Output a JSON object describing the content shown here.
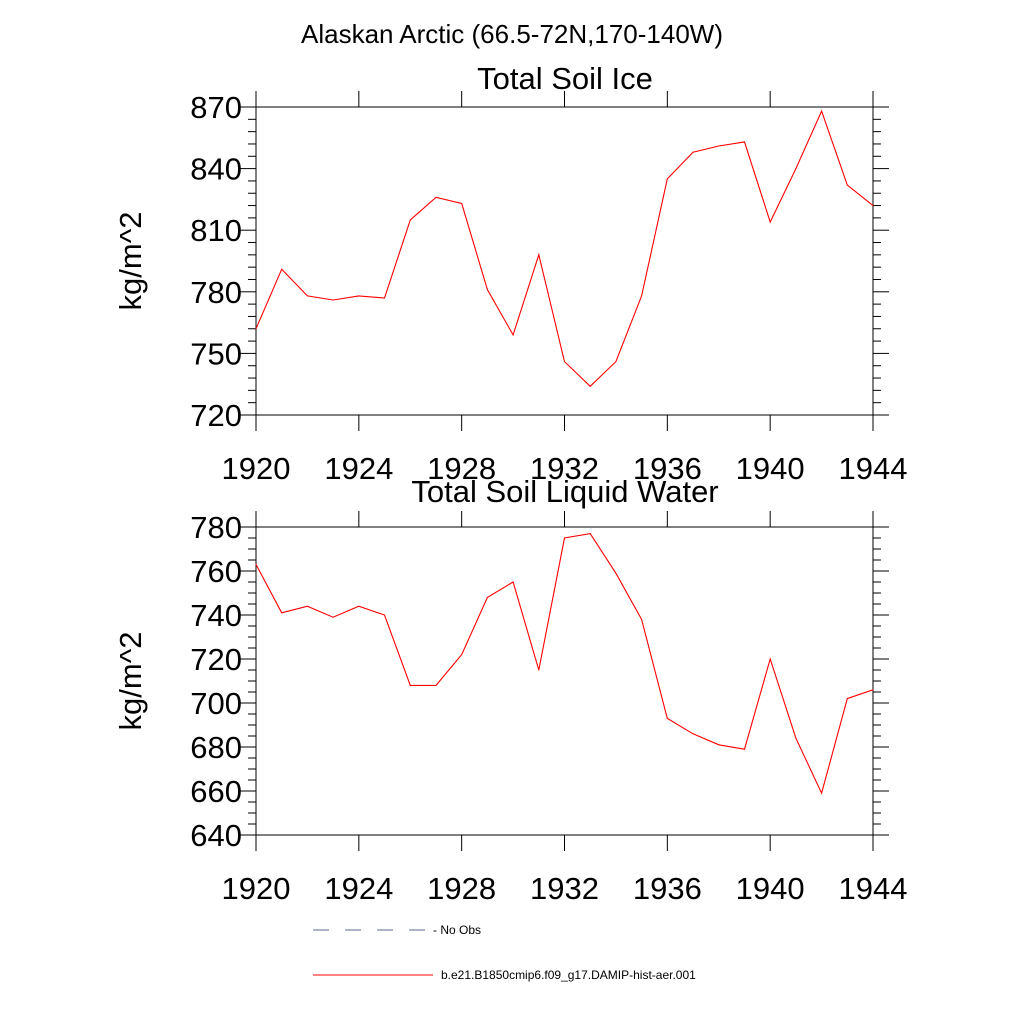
{
  "figure_title": "Alaskan Arctic (66.5-72N,170-140W)",
  "chart_data": [
    {
      "type": "line",
      "title": "Total Soil Ice",
      "xlabel": "",
      "ylabel": "kg/m^2",
      "xlim": [
        1920,
        1944
      ],
      "ylim": [
        720,
        870
      ],
      "x_ticks": [
        1920,
        1924,
        1928,
        1932,
        1936,
        1940,
        1944
      ],
      "y_ticks": [
        720,
        750,
        780,
        810,
        840,
        870
      ],
      "grid": false,
      "series": [
        {
          "name": "b.e21.B1850cmip6.f09_g17.DAMIP-hist-aer.001",
          "color": "#ff0000",
          "x": [
            1920,
            1921,
            1922,
            1923,
            1924,
            1925,
            1926,
            1927,
            1928,
            1929,
            1930,
            1931,
            1932,
            1933,
            1934,
            1935,
            1936,
            1937,
            1938,
            1939,
            1940,
            1941,
            1942,
            1943,
            1944
          ],
          "values": [
            762,
            791,
            778,
            776,
            778,
            777,
            815,
            826,
            823,
            781,
            759,
            798,
            746,
            734,
            746,
            778,
            835,
            848,
            851,
            853,
            814,
            840,
            868,
            832,
            822
          ]
        }
      ]
    },
    {
      "type": "line",
      "title": "Total Soil Liquid Water",
      "xlabel": "",
      "ylabel": "kg/m^2",
      "xlim": [
        1920,
        1944
      ],
      "ylim": [
        640,
        780
      ],
      "x_ticks": [
        1920,
        1924,
        1928,
        1932,
        1936,
        1940,
        1944
      ],
      "y_ticks": [
        640,
        660,
        680,
        700,
        720,
        740,
        760,
        780
      ],
      "grid": false,
      "series": [
        {
          "name": "b.e21.B1850cmip6.f09_g17.DAMIP-hist-aer.001",
          "color": "#ff0000",
          "x": [
            1920,
            1921,
            1922,
            1923,
            1924,
            1925,
            1926,
            1927,
            1928,
            1929,
            1930,
            1931,
            1932,
            1933,
            1934,
            1935,
            1936,
            1937,
            1938,
            1939,
            1940,
            1941,
            1942,
            1943,
            1944
          ],
          "values": [
            763,
            741,
            744,
            739,
            744,
            740,
            708,
            708,
            722,
            748,
            755,
            715,
            775,
            777,
            759,
            738,
            693,
            686,
            681,
            679,
            720,
            684,
            659,
            702,
            706
          ]
        }
      ]
    }
  ],
  "legend": {
    "placement": "bottom-center",
    "items": [
      {
        "label": "- No Obs",
        "style": "dashed",
        "color": "#7a8aa6"
      },
      {
        "label": "b.e21.B1850cmip6.f09_g17.DAMIP-hist-aer.001",
        "style": "solid",
        "color": "#ff0000"
      }
    ]
  }
}
